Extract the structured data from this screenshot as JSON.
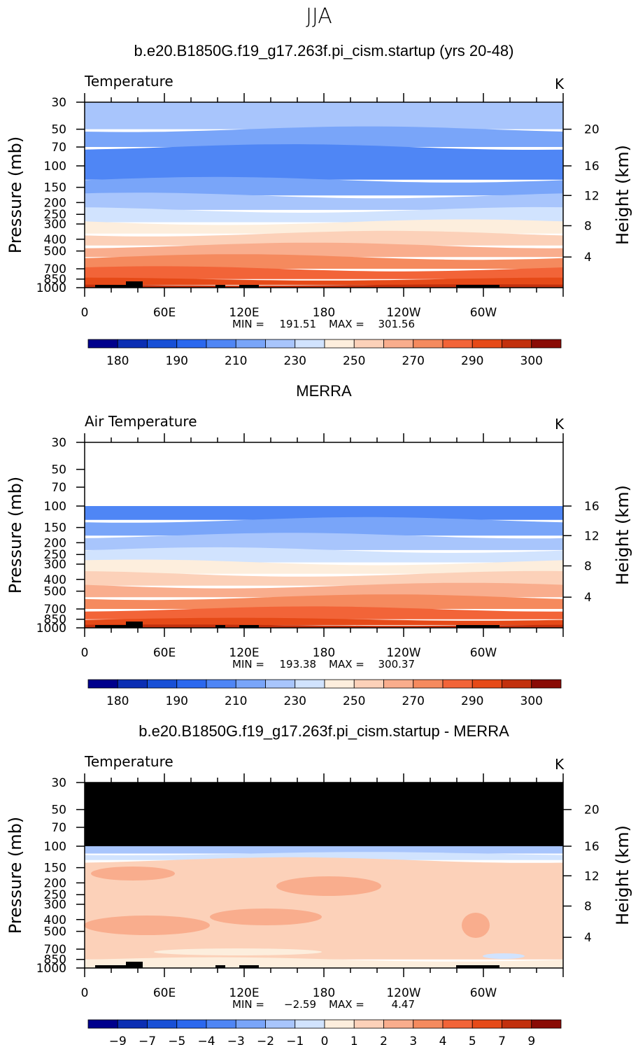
{
  "page_title": "JJA",
  "lon_ticks": [
    "0",
    "60E",
    "120E",
    "180",
    "120W",
    "60W"
  ],
  "pressure_ticks": [
    "30",
    "50",
    "70",
    "100",
    "150",
    "200",
    "250",
    "300",
    "400",
    "500",
    "700",
    "850",
    "1000"
  ],
  "pressure_axis_label": "Pressure (mb)",
  "height_axis_label": "Height (km)",
  "colors": {
    "temp_palette": [
      "#00008c",
      "#0b2eb3",
      "#1850d6",
      "#2b68ee",
      "#4f86f5",
      "#79a5f9",
      "#a8c5fc",
      "#d1e3fe",
      "#fdeedd",
      "#fcd1b9",
      "#f9ad8d",
      "#f58a5e",
      "#f26438",
      "#e64a18",
      "#c2300d",
      "#8a0b05"
    ],
    "diff_palette": [
      "#00008c",
      "#0b2eb3",
      "#1850d6",
      "#2b68ee",
      "#4f86f5",
      "#79a5f9",
      "#a8c5fc",
      "#d1e3fe",
      "#fdeedd",
      "#fcd1b9",
      "#f9ad8d",
      "#f58a5e",
      "#f26438",
      "#e64a18",
      "#c2300d",
      "#8a0b05"
    ],
    "masked": "#000000"
  },
  "chart_data": [
    {
      "type": "heatmap",
      "title": "b.e20.B1850G.f19_g17.263f.pi_cism.startup (yrs 20-48)",
      "variable": "Temperature",
      "units": "K",
      "xlabel": "",
      "ylabel": "Pressure (mb)",
      "y2label": "Height (km)",
      "height_ticks": [
        "20",
        "16",
        "12",
        "8",
        "4"
      ],
      "stats": {
        "min_label": "MIN =",
        "min": "191.51",
        "max_label": "MAX =",
        "max": "301.56"
      },
      "colorbar_labels": [
        "180",
        "190",
        "210",
        "230",
        "250",
        "270",
        "290",
        "300"
      ],
      "bands": [
        {
          "p_top": 30,
          "p_bot": 50,
          "value": 220
        },
        {
          "p_top": 50,
          "p_bot": 70,
          "value": 212
        },
        {
          "p_top": 70,
          "p_bot": 130,
          "value": 205
        },
        {
          "p_top": 130,
          "p_bot": 175,
          "value": 212
        },
        {
          "p_top": 175,
          "p_bot": 230,
          "value": 222
        },
        {
          "p_top": 230,
          "p_bot": 290,
          "value": 232
        },
        {
          "p_top": 290,
          "p_bot": 360,
          "value": 244
        },
        {
          "p_top": 360,
          "p_bot": 450,
          "value": 255
        },
        {
          "p_top": 450,
          "p_bot": 560,
          "value": 264
        },
        {
          "p_top": 560,
          "p_bot": 700,
          "value": 274
        },
        {
          "p_top": 700,
          "p_bot": 850,
          "value": 282
        },
        {
          "p_top": 850,
          "p_bot": 950,
          "value": 290
        },
        {
          "p_top": 950,
          "p_bot": 1000,
          "value": 296
        }
      ]
    },
    {
      "type": "heatmap",
      "title": "MERRA",
      "variable": "Air Temperature",
      "units": "K",
      "xlabel": "",
      "ylabel": "Pressure (mb)",
      "y2label": "Height (km)",
      "height_ticks": [
        "16",
        "12",
        "8",
        "4"
      ],
      "stats": {
        "min_label": "MIN =",
        "min": "193.38",
        "max_label": "MAX =",
        "max": "300.37"
      },
      "colorbar_labels": [
        "180",
        "190",
        "210",
        "230",
        "250",
        "270",
        "290",
        "300"
      ],
      "bands": [
        {
          "p_top": 100,
          "p_bot": 130,
          "value": 205
        },
        {
          "p_top": 130,
          "p_bot": 175,
          "value": 212
        },
        {
          "p_top": 175,
          "p_bot": 230,
          "value": 222
        },
        {
          "p_top": 230,
          "p_bot": 290,
          "value": 232
        },
        {
          "p_top": 290,
          "p_bot": 360,
          "value": 244
        },
        {
          "p_top": 360,
          "p_bot": 450,
          "value": 255
        },
        {
          "p_top": 450,
          "p_bot": 560,
          "value": 264
        },
        {
          "p_top": 560,
          "p_bot": 700,
          "value": 274
        },
        {
          "p_top": 700,
          "p_bot": 850,
          "value": 282
        },
        {
          "p_top": 850,
          "p_bot": 950,
          "value": 290
        },
        {
          "p_top": 950,
          "p_bot": 1000,
          "value": 296
        }
      ]
    },
    {
      "type": "heatmap",
      "title": "b.e20.B1850G.f19_g17.263f.pi_cism.startup - MERRA",
      "variable": "Temperature",
      "units": "K",
      "xlabel": "",
      "ylabel": "Pressure (mb)",
      "y2label": "Height (km)",
      "height_ticks": [
        "20",
        "16",
        "12",
        "8",
        "4"
      ],
      "stats": {
        "min_label": "MIN =",
        "min": "−2.59",
        "max_label": "MAX =",
        "max": "4.47"
      },
      "colorbar_labels": [
        "−9",
        "−7",
        "−5",
        "−4",
        "−3",
        "−2",
        "−1",
        "0",
        "1",
        "2",
        "3",
        "4",
        "5",
        "7",
        "9"
      ],
      "masked_above_mb": 100,
      "bands": [
        {
          "p_top": 100,
          "p_bot": 115,
          "value": -1.5
        },
        {
          "p_top": 115,
          "p_bot": 130,
          "value": -0.5
        },
        {
          "p_top": 130,
          "p_bot": 850,
          "value": 1.5
        },
        {
          "p_top": 850,
          "p_bot": 1000,
          "value": 0.5
        }
      ]
    }
  ]
}
